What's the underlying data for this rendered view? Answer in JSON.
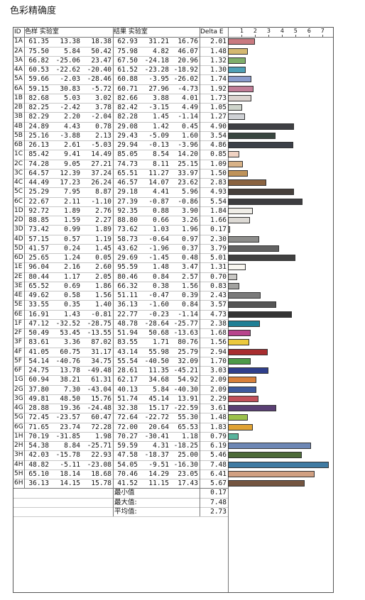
{
  "title": "色彩精确度",
  "headers": {
    "id": "ID",
    "sample": "色样 实验室",
    "result": "结果 实验室",
    "delta": "Delta E"
  },
  "axis_ticks": [
    "1",
    "2",
    "3",
    "4",
    "5",
    "6",
    "7"
  ],
  "summary": [
    {
      "label": "最小值",
      "value": "0.17"
    },
    {
      "label": "最大值:",
      "value": "7.48"
    },
    {
      "label": "平均值:",
      "value": "2.73"
    }
  ],
  "chart_data": {
    "type": "bar",
    "title": "色彩精确度",
    "xlim": [
      0,
      7.7
    ],
    "rows": [
      {
        "id": "1A",
        "s": [
          "61.35",
          "13.38",
          "18.38"
        ],
        "r": [
          "62.93",
          "31.21",
          "16.76"
        ],
        "de": 2.01,
        "color": "#c97a80"
      },
      {
        "id": "2A",
        "s": [
          "75.50",
          "5.84",
          "50.42"
        ],
        "r": [
          "75.98",
          "4.82",
          "46.07"
        ],
        "de": 1.48,
        "color": "#d4b870"
      },
      {
        "id": "3A",
        "s": [
          "66.82",
          "-25.06",
          "23.47"
        ],
        "r": [
          "67.50",
          "-24.18",
          "20.96"
        ],
        "de": 1.32,
        "color": "#7fae6a"
      },
      {
        "id": "4A",
        "s": [
          "60.53",
          "-22.62",
          "-20.40"
        ],
        "r": [
          "61.52",
          "-23.28",
          "-18.92"
        ],
        "de": 1.3,
        "color": "#4ea0b6"
      },
      {
        "id": "5A",
        "s": [
          "59.66",
          "-2.03",
          "-28.46"
        ],
        "r": [
          "60.88",
          "-3.95",
          "-26.02"
        ],
        "de": 1.74,
        "color": "#8a9ccd"
      },
      {
        "id": "6A",
        "s": [
          "59.15",
          "30.83",
          "-5.72"
        ],
        "r": [
          "60.71",
          "27.96",
          "-4.73"
        ],
        "de": 1.92,
        "color": "#c27e98"
      },
      {
        "id": "1B",
        "s": [
          "82.68",
          "5.03",
          "3.02"
        ],
        "r": [
          "82.66",
          "3.88",
          "4.01"
        ],
        "de": 1.73,
        "color": "#dcd3cf"
      },
      {
        "id": "2B",
        "s": [
          "82.25",
          "-2.42",
          "3.78"
        ],
        "r": [
          "82.42",
          "-3.15",
          "4.49"
        ],
        "de": 1.05,
        "color": "#ced4cb"
      },
      {
        "id": "3B",
        "s": [
          "82.29",
          "2.20",
          "-2.04"
        ],
        "r": [
          "82.28",
          "1.45",
          "-1.14"
        ],
        "de": 1.27,
        "color": "#cfd1d5"
      },
      {
        "id": "4B",
        "s": [
          "24.89",
          "4.43",
          "0.78"
        ],
        "r": [
          "29.08",
          "1.42",
          "0.45"
        ],
        "de": 4.9,
        "color": "#3f4044"
      },
      {
        "id": "5B",
        "s": [
          "25.16",
          "-3.88",
          "2.13"
        ],
        "r": [
          "29.43",
          "-5.09",
          "1.60"
        ],
        "de": 3.54,
        "color": "#394640"
      },
      {
        "id": "6B",
        "s": [
          "26.13",
          "2.61",
          "-5.03"
        ],
        "r": [
          "29.94",
          "-0.13",
          "-3.96"
        ],
        "de": 4.86,
        "color": "#3c4048"
      },
      {
        "id": "1C",
        "s": [
          "85.42",
          "9.41",
          "14.49"
        ],
        "r": [
          "85.05",
          "8.54",
          "14.20"
        ],
        "de": 0.85,
        "color": "#f0d2c2"
      },
      {
        "id": "2C",
        "s": [
          "74.28",
          "9.05",
          "27.21"
        ],
        "r": [
          "74.73",
          "8.11",
          "25.15"
        ],
        "de": 1.09,
        "color": "#d8b287"
      },
      {
        "id": "3C",
        "s": [
          "64.57",
          "12.39",
          "37.24"
        ],
        "r": [
          "65.51",
          "11.27",
          "33.97"
        ],
        "de": 1.5,
        "color": "#bf935a"
      },
      {
        "id": "4C",
        "s": [
          "44.49",
          "17.23",
          "26.24"
        ],
        "r": [
          "46.57",
          "14.07",
          "23.62"
        ],
        "de": 2.83,
        "color": "#8a6340"
      },
      {
        "id": "5C",
        "s": [
          "25.29",
          "7.95",
          "8.87"
        ],
        "r": [
          "29.18",
          "4.41",
          "5.96"
        ],
        "de": 4.93,
        "color": "#47403b"
      },
      {
        "id": "6C",
        "s": [
          "22.67",
          "2.11",
          "-1.10"
        ],
        "r": [
          "27.39",
          "-0.87",
          "-0.86"
        ],
        "de": 5.54,
        "color": "#3d3d40"
      },
      {
        "id": "1D",
        "s": [
          "92.72",
          "1.89",
          "2.76"
        ],
        "r": [
          "92.35",
          "0.88",
          "3.90"
        ],
        "de": 1.84,
        "color": "#f0eee8"
      },
      {
        "id": "2D",
        "s": [
          "88.85",
          "1.59",
          "2.27"
        ],
        "r": [
          "88.80",
          "0.66",
          "3.26"
        ],
        "de": 1.66,
        "color": "#dddad5"
      },
      {
        "id": "3D",
        "s": [
          "73.42",
          "0.99",
          "1.89"
        ],
        "r": [
          "73.62",
          "1.03",
          "1.96"
        ],
        "de": 0.17,
        "color": "#b8b7b4"
      },
      {
        "id": "4D",
        "s": [
          "57.15",
          "0.57",
          "1.19"
        ],
        "r": [
          "58.73",
          "-0.64",
          "0.97"
        ],
        "de": 2.3,
        "color": "#8d8d8b"
      },
      {
        "id": "5D",
        "s": [
          "41.57",
          "0.24",
          "1.45"
        ],
        "r": [
          "43.62",
          "-1.96",
          "0.37"
        ],
        "de": 3.79,
        "color": "#626262"
      },
      {
        "id": "6D",
        "s": [
          "25.65",
          "1.24",
          "0.05"
        ],
        "r": [
          "29.69",
          "-1.45",
          "0.48"
        ],
        "de": 5.01,
        "color": "#404040"
      },
      {
        "id": "1E",
        "s": [
          "96.04",
          "2.16",
          "2.60"
        ],
        "r": [
          "95.59",
          "1.48",
          "3.47"
        ],
        "de": 1.31,
        "color": "#f8f6f0"
      },
      {
        "id": "2E",
        "s": [
          "80.44",
          "1.17",
          "2.05"
        ],
        "r": [
          "80.46",
          "0.84",
          "2.57"
        ],
        "de": 0.7,
        "color": "#c9c8c5"
      },
      {
        "id": "3E",
        "s": [
          "65.52",
          "0.69",
          "1.86"
        ],
        "r": [
          "66.32",
          "0.38",
          "1.56"
        ],
        "de": 0.83,
        "color": "#a2a2a0"
      },
      {
        "id": "4E",
        "s": [
          "49.62",
          "0.58",
          "1.56"
        ],
        "r": [
          "51.11",
          "-0.47",
          "0.39"
        ],
        "de": 2.43,
        "color": "#7b7b7b"
      },
      {
        "id": "5E",
        "s": [
          "33.55",
          "0.35",
          "1.40"
        ],
        "r": [
          "36.13",
          "-1.60",
          "0.84"
        ],
        "de": 3.57,
        "color": "#555555"
      },
      {
        "id": "6E",
        "s": [
          "16.91",
          "1.43",
          "-0.81"
        ],
        "r": [
          "22.77",
          "-0.23",
          "-1.14"
        ],
        "de": 4.73,
        "color": "#333333"
      },
      {
        "id": "1F",
        "s": [
          "47.12",
          "-32.52",
          "-28.75"
        ],
        "r": [
          "48.78",
          "-28.64",
          "-25.77"
        ],
        "de": 2.38,
        "color": "#1f7f95"
      },
      {
        "id": "2F",
        "s": [
          "50.49",
          "53.45",
          "-13.55"
        ],
        "r": [
          "51.94",
          "50.68",
          "-13.63"
        ],
        "de": 1.68,
        "color": "#b8448c"
      },
      {
        "id": "3F",
        "s": [
          "83.61",
          "3.36",
          "87.02"
        ],
        "r": [
          "83.55",
          "1.71",
          "80.76"
        ],
        "de": 1.56,
        "color": "#ecc93e"
      },
      {
        "id": "4F",
        "s": [
          "41.05",
          "60.75",
          "31.17"
        ],
        "r": [
          "43.14",
          "55.98",
          "25.79"
        ],
        "de": 2.94,
        "color": "#a82d2f"
      },
      {
        "id": "5F",
        "s": [
          "54.14",
          "-40.76",
          "34.75"
        ],
        "r": [
          "55.54",
          "-40.50",
          "32.09"
        ],
        "de": 1.7,
        "color": "#4c9a48"
      },
      {
        "id": "6F",
        "s": [
          "24.75",
          "13.78",
          "-49.48"
        ],
        "r": [
          "28.61",
          "11.35",
          "-45.21"
        ],
        "de": 3.03,
        "color": "#2f3f8c"
      },
      {
        "id": "1G",
        "s": [
          "60.94",
          "38.21",
          "61.31"
        ],
        "r": [
          "62.17",
          "34.68",
          "54.92"
        ],
        "de": 2.09,
        "color": "#d8803a"
      },
      {
        "id": "2G",
        "s": [
          "37.80",
          "7.30",
          "-43.04"
        ],
        "r": [
          "40.13",
          "5.84",
          "-40.30"
        ],
        "de": 2.09,
        "color": "#3e5a9e"
      },
      {
        "id": "3G",
        "s": [
          "49.81",
          "48.50",
          "15.76"
        ],
        "r": [
          "51.74",
          "45.14",
          "13.91"
        ],
        "de": 2.29,
        "color": "#c2505a"
      },
      {
        "id": "4G",
        "s": [
          "28.88",
          "19.36",
          "-24.48"
        ],
        "r": [
          "32.38",
          "15.17",
          "-22.59"
        ],
        "de": 3.61,
        "color": "#5a3f74"
      },
      {
        "id": "5G",
        "s": [
          "72.45",
          "-23.57",
          "60.47"
        ],
        "r": [
          "72.64",
          "-22.72",
          "55.30"
        ],
        "de": 1.48,
        "color": "#9cc14b"
      },
      {
        "id": "6G",
        "s": [
          "71.65",
          "23.74",
          "72.28"
        ],
        "r": [
          "72.00",
          "20.64",
          "65.53"
        ],
        "de": 1.83,
        "color": "#e0a233"
      },
      {
        "id": "1H",
        "s": [
          "70.19",
          "-31.85",
          "1.98"
        ],
        "r": [
          "70.27",
          "-30.41",
          "1.18"
        ],
        "de": 0.79,
        "color": "#5ab39c"
      },
      {
        "id": "2H",
        "s": [
          "54.38",
          "8.84",
          "-25.71"
        ],
        "r": [
          "59.59",
          "4.31",
          "-18.25"
        ],
        "de": 6.19,
        "color": "#6d87b5"
      },
      {
        "id": "3H",
        "s": [
          "42.03",
          "-15.78",
          "22.93"
        ],
        "r": [
          "47.58",
          "-18.37",
          "25.00"
        ],
        "de": 5.46,
        "color": "#4d6b39"
      },
      {
        "id": "4H",
        "s": [
          "48.82",
          "-5.11",
          "-23.08"
        ],
        "r": [
          "54.05",
          "-9.51",
          "-16.30"
        ],
        "de": 7.48,
        "color": "#3f7ba3"
      },
      {
        "id": "5H",
        "s": [
          "65.10",
          "18.14",
          "18.68"
        ],
        "r": [
          "70.46",
          "14.29",
          "23.05"
        ],
        "de": 6.41,
        "color": "#d1a082"
      },
      {
        "id": "6H",
        "s": [
          "36.13",
          "14.15",
          "15.78"
        ],
        "r": [
          "41.52",
          "11.15",
          "17.43"
        ],
        "de": 5.67,
        "color": "#745540"
      }
    ]
  }
}
